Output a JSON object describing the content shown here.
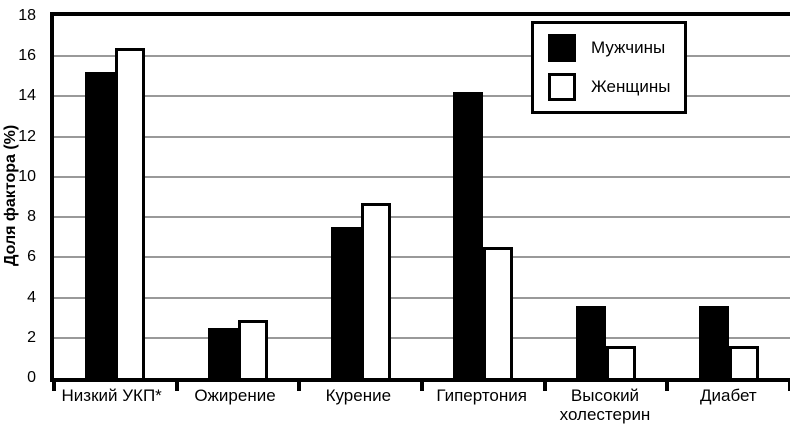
{
  "chart_data": {
    "type": "bar",
    "categories": [
      "Низкий УКП*",
      "Ожирение",
      "Курение",
      "Гипертония",
      "Высокий\nхолестерин",
      "Диабет"
    ],
    "series": [
      {
        "name": "Мужчины",
        "color": "#000000",
        "values": [
          15.2,
          2.5,
          7.5,
          14.2,
          3.6,
          3.6
        ]
      },
      {
        "name": "Женщины",
        "color": "#ffffff",
        "values": [
          16.4,
          2.9,
          8.7,
          6.5,
          1.6,
          1.6
        ]
      }
    ],
    "title": "",
    "xlabel": "",
    "ylabel": "Доля фактора (%)",
    "ylim": [
      0,
      18
    ],
    "yticks": [
      0,
      2,
      4,
      6,
      8,
      10,
      12,
      14,
      16,
      18
    ],
    "grid": true,
    "gridline_color": "#999999",
    "bar_border_color": "#000000",
    "axis_color": "#000000",
    "legend_position": "top-right",
    "legend": {
      "items": [
        "Мужчины",
        "Женщины"
      ]
    }
  }
}
